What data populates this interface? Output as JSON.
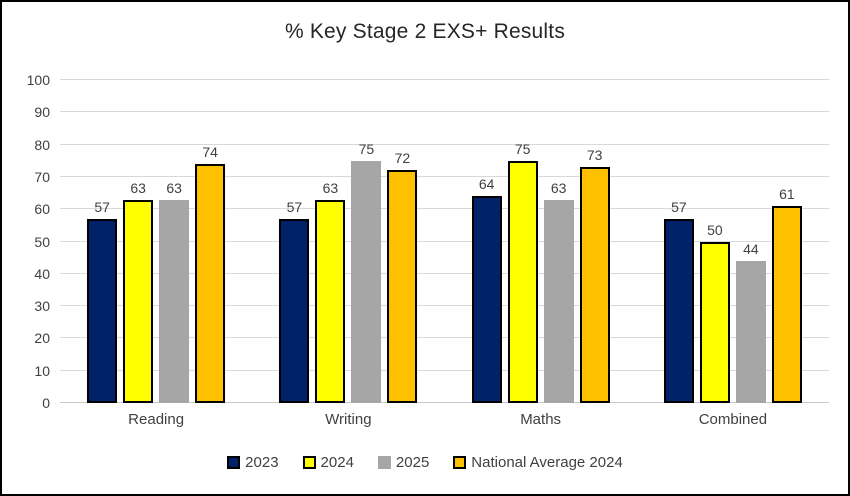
{
  "window": {
    "background_color": "#FFFFFF",
    "frame_border_color": "#000000"
  },
  "chart_data": {
    "type": "bar",
    "title": "% Key Stage 2 EXS+ Results",
    "categories": [
      "Reading",
      "Writing",
      "Maths",
      "Combined"
    ],
    "series": [
      {
        "name": "2023",
        "color": "#012169",
        "border_color": "#000000",
        "values": [
          57,
          57,
          64,
          57
        ]
      },
      {
        "name": "2024",
        "color": "#FFFF00",
        "border_color": "#000000",
        "values": [
          63,
          63,
          75,
          50
        ]
      },
      {
        "name": "2025",
        "color": "#A6A6A6",
        "border_color": null,
        "values": [
          63,
          75,
          63,
          44
        ]
      },
      {
        "name": "National Average 2024",
        "color": "#FFC000",
        "border_color": "#000000",
        "values": [
          74,
          72,
          73,
          61
        ]
      }
    ],
    "ylim": [
      0,
      100
    ],
    "yticks": [
      0,
      10,
      20,
      30,
      40,
      50,
      60,
      70,
      80,
      90,
      100
    ],
    "xlabel": "",
    "ylabel": "",
    "grid": true,
    "gridline_color": "#D9D9D9",
    "data_labels": true,
    "data_label_color": "#404040",
    "legend_position": "bottom"
  }
}
